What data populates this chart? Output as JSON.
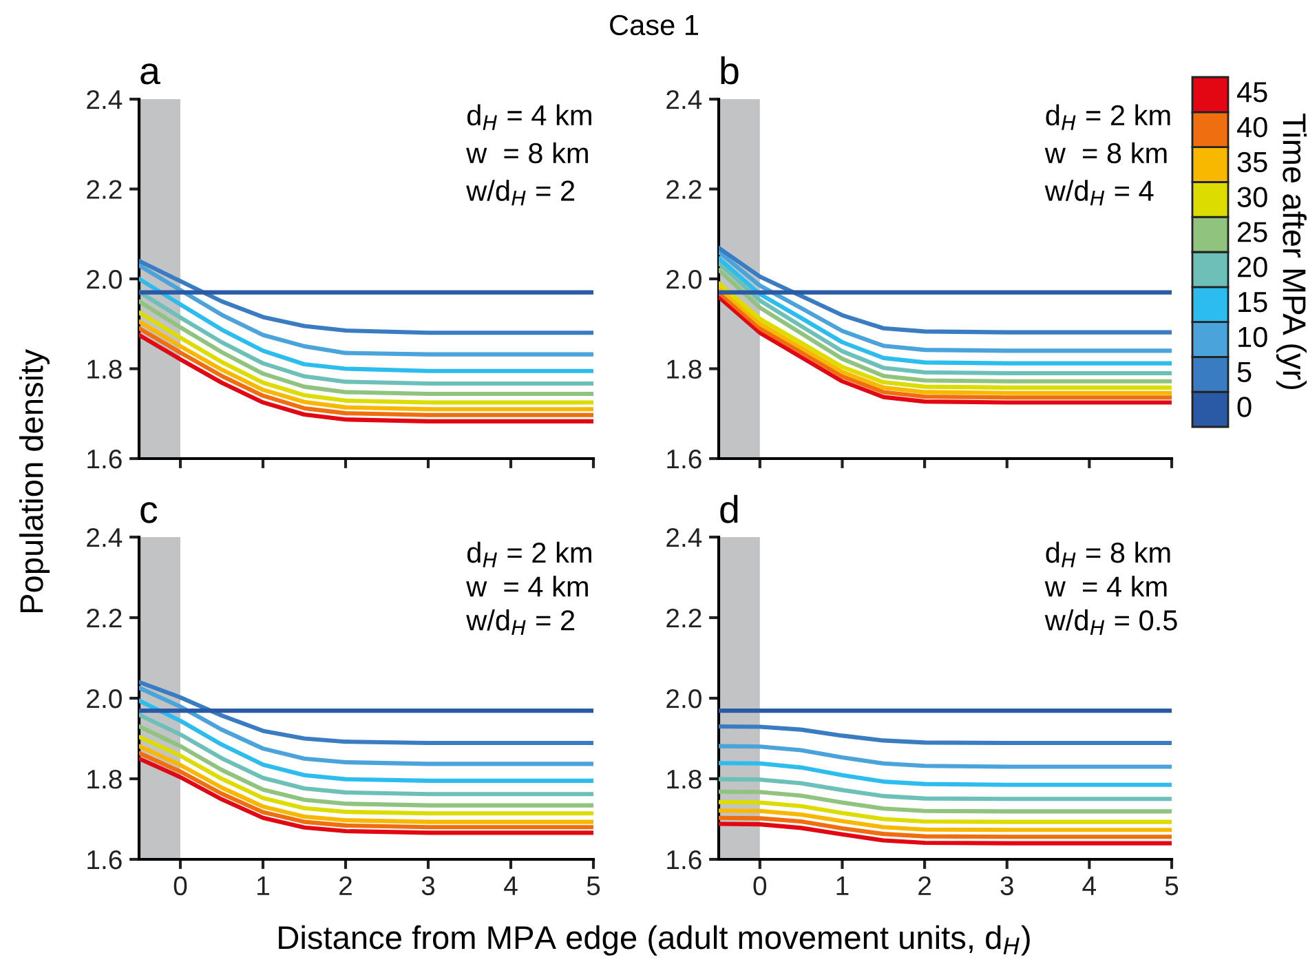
{
  "chart_data": [
    {
      "type": "line",
      "title": "a",
      "ylabel": "Population density",
      "annotations": [
        "Case 1",
        "d$_{H}$ = 4 km",
        "w  = 8 km",
        "w/d$_{H}$ = 2"
      ],
      "x": [
        -0.5,
        0,
        0.5,
        1,
        1.5,
        2,
        3,
        5
      ],
      "xlim": [
        -0.5,
        5
      ],
      "xticks": [
        0,
        1,
        2,
        3,
        4,
        5
      ],
      "ylim": [
        1.6,
        2.4
      ],
      "yticks": [
        {
          "value": 1.6,
          "label": "1.6"
        },
        {
          "value": 1.8,
          "label": "1.8"
        },
        {
          "value": 2.0,
          "label": "2.0"
        },
        {
          "value": 2.2,
          "label": "2.2"
        },
        {
          "value": 2.4,
          "label": "2.4"
        }
      ],
      "tick_labels": "y",
      "bands": [
        {
          "axis": "x",
          "from": -0.5,
          "to": 0,
          "color": "#c2c3c5"
        }
      ],
      "series": [
        {
          "color": "#2a5aa6",
          "values": [
            1.97,
            1.97,
            1.97,
            1.97,
            1.97,
            1.97,
            1.97,
            1.97
          ]
        },
        {
          "color": "#3a7cc2",
          "values": [
            2.04,
            1.995,
            1.95,
            1.915,
            1.895,
            1.885,
            1.88,
            1.88
          ]
        },
        {
          "color": "#4aa3db",
          "values": [
            2.03,
            1.975,
            1.92,
            1.875,
            1.85,
            1.835,
            1.832,
            1.832
          ]
        },
        {
          "color": "#2cbdee",
          "values": [
            2.0,
            1.943,
            1.887,
            1.84,
            1.81,
            1.8,
            1.795,
            1.795
          ]
        },
        {
          "color": "#6cc0b8",
          "values": [
            1.971,
            1.914,
            1.859,
            1.812,
            1.783,
            1.771,
            1.767,
            1.767
          ]
        },
        {
          "color": "#90c47e",
          "values": [
            1.95,
            1.892,
            1.837,
            1.789,
            1.76,
            1.748,
            1.744,
            1.744
          ]
        },
        {
          "color": "#dcdc00",
          "values": [
            1.925,
            1.869,
            1.815,
            1.769,
            1.741,
            1.729,
            1.725,
            1.725
          ]
        },
        {
          "color": "#f8b800",
          "values": [
            1.905,
            1.85,
            1.798,
            1.753,
            1.726,
            1.714,
            1.71,
            1.71
          ]
        },
        {
          "color": "#ee6e10",
          "values": [
            1.89,
            1.836,
            1.784,
            1.74,
            1.712,
            1.701,
            1.697,
            1.697
          ]
        },
        {
          "color": "#e30613",
          "values": [
            1.875,
            1.821,
            1.769,
            1.725,
            1.698,
            1.687,
            1.683,
            1.683
          ]
        }
      ]
    },
    {
      "type": "line",
      "title": "b",
      "annotations": [
        "d$_{H}$ = 2 km",
        "w  = 8 km",
        "w/d$_{H}$ = 4"
      ],
      "x": [
        -0.5,
        0,
        0.5,
        1,
        1.5,
        2,
        3,
        5
      ],
      "xlim": [
        -0.5,
        5
      ],
      "xticks": [
        0,
        1,
        2,
        3,
        4,
        5
      ],
      "ylim": [
        1.6,
        2.4
      ],
      "yticks": [
        {
          "value": 1.6,
          "label": "1.6"
        },
        {
          "value": 1.8,
          "label": "1.8"
        },
        {
          "value": 2.0,
          "label": "2.0"
        },
        {
          "value": 2.2,
          "label": "2.2"
        },
        {
          "value": 2.4,
          "label": "2.4"
        }
      ],
      "tick_labels": "y",
      "bands": [
        {
          "axis": "x",
          "from": -0.5,
          "to": 0,
          "color": "#c2c3c5"
        }
      ],
      "legend": "right",
      "legend_title": "Time after MPA (yr)",
      "series": [
        {
          "name": "0",
          "color": "#2a5aa6",
          "values": [
            1.97,
            1.97,
            1.97,
            1.97,
            1.97,
            1.97,
            1.97,
            1.97
          ]
        },
        {
          "name": "5",
          "color": "#3a7cc2",
          "values": [
            2.069,
            2.005,
            1.962,
            1.919,
            1.89,
            1.883,
            1.881,
            1.881
          ]
        },
        {
          "name": "10",
          "color": "#4aa3db",
          "values": [
            2.06,
            1.985,
            1.935,
            1.884,
            1.851,
            1.842,
            1.84,
            1.84
          ]
        },
        {
          "name": "15",
          "color": "#2cbdee",
          "values": [
            2.046,
            1.966,
            1.913,
            1.859,
            1.824,
            1.814,
            1.812,
            1.812
          ]
        },
        {
          "name": "20",
          "color": "#6cc0b8",
          "values": [
            2.035,
            1.952,
            1.895,
            1.839,
            1.802,
            1.792,
            1.79,
            1.79
          ]
        },
        {
          "name": "25",
          "color": "#90c47e",
          "values": [
            2.02,
            1.936,
            1.879,
            1.822,
            1.784,
            1.774,
            1.772,
            1.772
          ]
        },
        {
          "name": "30",
          "color": "#dcdc00",
          "values": [
            1.99,
            1.911,
            1.858,
            1.804,
            1.77,
            1.76,
            1.758,
            1.758
          ]
        },
        {
          "name": "35",
          "color": "#f8b800",
          "values": [
            1.98,
            1.9,
            1.847,
            1.793,
            1.758,
            1.748,
            1.746,
            1.746
          ]
        },
        {
          "name": "40",
          "color": "#ee6e10",
          "values": [
            1.97,
            1.89,
            1.837,
            1.783,
            1.748,
            1.738,
            1.736,
            1.736
          ]
        },
        {
          "name": "45",
          "color": "#e30613",
          "values": [
            1.96,
            1.88,
            1.826,
            1.772,
            1.737,
            1.727,
            1.725,
            1.725
          ]
        }
      ]
    },
    {
      "type": "line",
      "title": "c",
      "xlabel": "Distance from MPA edge (adult movement units, d$_{H}$)",
      "annotations": [
        "d$_{H}$ = 2 km",
        "w  = 4 km",
        "w/d$_{H}$ = 2"
      ],
      "x": [
        -0.5,
        0,
        0.5,
        1,
        1.5,
        2,
        3,
        5
      ],
      "xlim": [
        -0.5,
        5
      ],
      "xticks": [
        0,
        1,
        2,
        3,
        4,
        5
      ],
      "ylim": [
        1.6,
        2.4
      ],
      "yticks": [
        {
          "value": 1.6,
          "label": "1.6"
        },
        {
          "value": 1.8,
          "label": "1.8"
        },
        {
          "value": 2.0,
          "label": "2.0"
        },
        {
          "value": 2.2,
          "label": "2.2"
        },
        {
          "value": 2.4,
          "label": "2.4"
        }
      ],
      "bands": [
        {
          "axis": "x",
          "from": -0.5,
          "to": 0,
          "color": "#c2c3c5"
        }
      ],
      "series": [
        {
          "color": "#2a5aa6",
          "values": [
            1.969,
            1.969,
            1.969,
            1.969,
            1.969,
            1.969,
            1.969,
            1.969
          ]
        },
        {
          "color": "#3a7cc2",
          "values": [
            2.04,
            2.002,
            1.957,
            1.919,
            1.9,
            1.892,
            1.889,
            1.889
          ]
        },
        {
          "color": "#4aa3db",
          "values": [
            2.026,
            1.979,
            1.922,
            1.875,
            1.85,
            1.841,
            1.837,
            1.837
          ]
        },
        {
          "color": "#2cbdee",
          "values": [
            1.994,
            1.944,
            1.885,
            1.835,
            1.809,
            1.799,
            1.795,
            1.795
          ]
        },
        {
          "color": "#6cc0b8",
          "values": [
            1.959,
            1.91,
            1.851,
            1.802,
            1.776,
            1.766,
            1.762,
            1.762
          ]
        },
        {
          "color": "#90c47e",
          "values": [
            1.93,
            1.881,
            1.822,
            1.773,
            1.748,
            1.738,
            1.734,
            1.734
          ]
        },
        {
          "color": "#dcdc00",
          "values": [
            1.904,
            1.857,
            1.8,
            1.752,
            1.727,
            1.718,
            1.714,
            1.714
          ]
        },
        {
          "color": "#f8b800",
          "values": [
            1.881,
            1.834,
            1.778,
            1.731,
            1.706,
            1.697,
            1.693,
            1.693
          ]
        },
        {
          "color": "#ee6e10",
          "values": [
            1.864,
            1.818,
            1.763,
            1.717,
            1.693,
            1.684,
            1.68,
            1.68
          ]
        },
        {
          "color": "#e30613",
          "values": [
            1.85,
            1.804,
            1.749,
            1.703,
            1.679,
            1.67,
            1.666,
            1.666
          ]
        }
      ]
    },
    {
      "type": "line",
      "title": "d",
      "annotations": [
        "d$_{H}$ = 8 km",
        "w  = 4 km",
        "w/d$_{H}$ = 0.5"
      ],
      "x": [
        -0.5,
        0,
        0.5,
        1,
        1.5,
        2,
        3,
        5
      ],
      "xlim": [
        -0.5,
        5
      ],
      "xticks": [
        0,
        1,
        2,
        3,
        4,
        5
      ],
      "ylim": [
        1.6,
        2.4
      ],
      "yticks": [
        {
          "value": 1.6,
          "label": "1.6"
        },
        {
          "value": 1.8,
          "label": "1.8"
        },
        {
          "value": 2.0,
          "label": "2.0"
        },
        {
          "value": 2.2,
          "label": "2.2"
        },
        {
          "value": 2.4,
          "label": "2.4"
        }
      ],
      "bands": [
        {
          "axis": "x",
          "from": -0.5,
          "to": 0,
          "color": "#c2c3c5"
        }
      ],
      "series": [
        {
          "color": "#2a5aa6",
          "values": [
            1.969,
            1.969,
            1.969,
            1.969,
            1.969,
            1.969,
            1.969,
            1.969
          ]
        },
        {
          "color": "#3a7cc2",
          "values": [
            1.93,
            1.929,
            1.922,
            1.907,
            1.895,
            1.89,
            1.889,
            1.889
          ]
        },
        {
          "color": "#4aa3db",
          "values": [
            1.881,
            1.88,
            1.871,
            1.853,
            1.838,
            1.832,
            1.83,
            1.83
          ]
        },
        {
          "color": "#2cbdee",
          "values": [
            1.839,
            1.838,
            1.828,
            1.809,
            1.793,
            1.787,
            1.785,
            1.785
          ]
        },
        {
          "color": "#6cc0b8",
          "values": [
            1.799,
            1.798,
            1.789,
            1.772,
            1.757,
            1.751,
            1.75,
            1.75
          ]
        },
        {
          "color": "#90c47e",
          "values": [
            1.768,
            1.767,
            1.758,
            1.741,
            1.726,
            1.72,
            1.719,
            1.719
          ]
        },
        {
          "color": "#dcdc00",
          "values": [
            1.742,
            1.741,
            1.732,
            1.715,
            1.7,
            1.694,
            1.693,
            1.693
          ]
        },
        {
          "color": "#f8b800",
          "values": [
            1.721,
            1.72,
            1.711,
            1.695,
            1.68,
            1.674,
            1.673,
            1.673
          ]
        },
        {
          "color": "#ee6e10",
          "values": [
            1.703,
            1.702,
            1.694,
            1.677,
            1.663,
            1.657,
            1.656,
            1.656
          ]
        },
        {
          "color": "#e30613",
          "values": [
            1.688,
            1.687,
            1.678,
            1.662,
            1.647,
            1.641,
            1.64,
            1.64
          ]
        }
      ]
    }
  ]
}
